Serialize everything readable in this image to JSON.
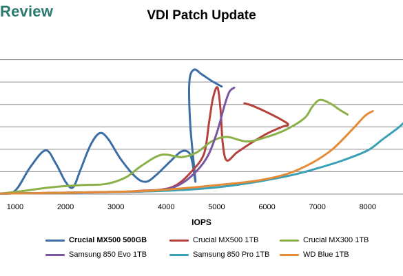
{
  "brand": "Review",
  "chart_data": {
    "type": "line",
    "title": "VDI Patch Update",
    "xlabel": "IOPS",
    "ylabel": "",
    "xlim": [
      700,
      8700
    ],
    "ylim": [
      0,
      7
    ],
    "xticks": [
      1000,
      2000,
      3000,
      4000,
      5000,
      6000,
      7000,
      8000
    ],
    "xtick_labels": [
      "1000",
      "2000",
      "3000",
      "4000",
      "5000",
      "6000",
      "7000",
      "8000"
    ],
    "yticks": [
      1,
      2,
      3,
      4,
      5,
      6
    ],
    "grid": true,
    "legend_position": "bottom",
    "series": [
      {
        "name": "Crucial MX500 500GB",
        "color": "#3b6ea5",
        "emphasis": true,
        "points": [
          [
            700,
            0.02
          ],
          [
            1000,
            0.15
          ],
          [
            1300,
            1.2
          ],
          [
            1600,
            1.95
          ],
          [
            1800,
            1.4
          ],
          [
            2000,
            0.55
          ],
          [
            2150,
            0.3
          ],
          [
            2300,
            1.1
          ],
          [
            2500,
            2.2
          ],
          [
            2680,
            2.72
          ],
          [
            2850,
            2.45
          ],
          [
            3100,
            1.55
          ],
          [
            3400,
            0.75
          ],
          [
            3600,
            0.55
          ],
          [
            3800,
            0.85
          ],
          [
            4100,
            1.5
          ],
          [
            4300,
            1.9
          ],
          [
            4450,
            1.85
          ],
          [
            4520,
            1.4
          ],
          [
            4580,
            0.6
          ],
          [
            4480,
            3.0
          ],
          [
            4460,
            5.0
          ],
          [
            4550,
            5.55
          ],
          [
            4700,
            5.35
          ],
          [
            4900,
            5.05
          ],
          [
            5100,
            4.8
          ]
        ]
      },
      {
        "name": "Crucial MX500 1TB",
        "color": "#b5413d",
        "emphasis": false,
        "points": [
          [
            700,
            0.02
          ],
          [
            3000,
            0.1
          ],
          [
            3500,
            0.15
          ],
          [
            3900,
            0.2
          ],
          [
            4200,
            0.4
          ],
          [
            4500,
            1.0
          ],
          [
            4750,
            1.8
          ],
          [
            4850,
            3.2
          ],
          [
            4930,
            4.3
          ],
          [
            5020,
            4.75
          ],
          [
            5080,
            3.7
          ],
          [
            5120,
            2.3
          ],
          [
            5200,
            1.5
          ],
          [
            5400,
            1.85
          ],
          [
            5700,
            2.3
          ],
          [
            6000,
            2.7
          ],
          [
            6300,
            3.0
          ],
          [
            6420,
            3.1
          ],
          [
            6300,
            3.3
          ],
          [
            6000,
            3.65
          ],
          [
            5700,
            3.95
          ],
          [
            5550,
            4.05
          ]
        ]
      },
      {
        "name": "Crucial MX300 1TB",
        "color": "#8bb04a",
        "emphasis": false,
        "points": [
          [
            700,
            0.02
          ],
          [
            1200,
            0.15
          ],
          [
            1700,
            0.3
          ],
          [
            2300,
            0.4
          ],
          [
            2800,
            0.45
          ],
          [
            3200,
            0.75
          ],
          [
            3500,
            1.25
          ],
          [
            3900,
            1.75
          ],
          [
            4300,
            1.65
          ],
          [
            4600,
            1.85
          ],
          [
            4900,
            2.35
          ],
          [
            5200,
            2.55
          ],
          [
            5600,
            2.35
          ],
          [
            6000,
            2.55
          ],
          [
            6400,
            2.9
          ],
          [
            6750,
            3.4
          ],
          [
            6900,
            3.9
          ],
          [
            7050,
            4.2
          ],
          [
            7250,
            4.05
          ],
          [
            7450,
            3.75
          ],
          [
            7600,
            3.55
          ]
        ]
      },
      {
        "name": "Samsung 850 Evo 1TB",
        "color": "#7a55a0",
        "emphasis": false,
        "points": [
          [
            700,
            0.02
          ],
          [
            3300,
            0.1
          ],
          [
            3900,
            0.2
          ],
          [
            4200,
            0.35
          ],
          [
            4500,
            0.8
          ],
          [
            4800,
            1.6
          ],
          [
            5000,
            2.7
          ],
          [
            5150,
            3.9
          ],
          [
            5250,
            4.55
          ],
          [
            5350,
            4.75
          ]
        ]
      },
      {
        "name": "Samsung 850 Pro 1TB",
        "color": "#3aa0b5",
        "emphasis": false,
        "points": [
          [
            700,
            0.02
          ],
          [
            2500,
            0.08
          ],
          [
            4000,
            0.15
          ],
          [
            5000,
            0.3
          ],
          [
            5800,
            0.55
          ],
          [
            6500,
            0.85
          ],
          [
            7000,
            1.15
          ],
          [
            7500,
            1.5
          ],
          [
            8000,
            1.95
          ],
          [
            8300,
            2.45
          ],
          [
            8600,
            2.95
          ],
          [
            8700,
            3.15
          ]
        ]
      },
      {
        "name": "WD Blue 1TB",
        "color": "#e58a35",
        "emphasis": false,
        "points": [
          [
            700,
            0.02
          ],
          [
            3000,
            0.1
          ],
          [
            4000,
            0.2
          ],
          [
            5000,
            0.4
          ],
          [
            5800,
            0.6
          ],
          [
            6400,
            0.9
          ],
          [
            6900,
            1.4
          ],
          [
            7300,
            2.0
          ],
          [
            7700,
            2.9
          ],
          [
            7950,
            3.5
          ],
          [
            8100,
            3.7
          ]
        ]
      }
    ]
  }
}
